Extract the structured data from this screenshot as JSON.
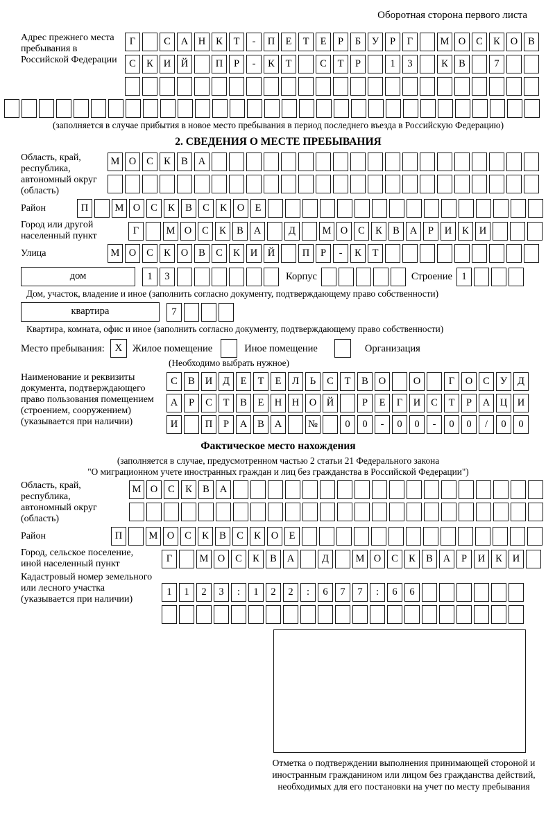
{
  "header": {
    "back_side_note": "Оборотная сторона первого листа"
  },
  "prev_stay": {
    "label": "Адрес прежнего места пребывания в Российской Федерации",
    "rows": [
      {
        "len": 24,
        "text": "Г САНКТ-ПЕТЕРБУРГ МОСКОВ"
      },
      {
        "len": 24,
        "text": "СКИЙ ПР-КТ СТР 13 КВ 7"
      },
      {
        "len": 24,
        "text": ""
      },
      {
        "len": 31,
        "text": ""
      }
    ],
    "note": "(заполняется в случае прибытия в новое место пребывания в период последнего въезда в Российскую Федерацию)"
  },
  "place_of_stay": {
    "title": "2. СВЕДЕНИЯ О МЕСТЕ ПРЕБЫВАНИЯ",
    "region_label": "Область, край, республика, автономный округ (область)",
    "region_rows": [
      {
        "len": 25,
        "text": "МОСКВА"
      },
      {
        "len": 25,
        "text": ""
      }
    ],
    "district_label": "Район",
    "district_row": {
      "len": 27,
      "text": "П МОСКВСКОЕ"
    },
    "city_label": "Город или другой населенный пункт",
    "city_row": {
      "len": 24,
      "text": "Г МОСКВА Д МОСКВАРИКИ"
    },
    "street_label": "Улица",
    "street_row": {
      "len": 25,
      "text": "МОСКОВСКИЙ ПР-КТ"
    },
    "house_box_label": "дом",
    "house_row": {
      "len": 8,
      "text": "13"
    },
    "korpus_label": "Корпус",
    "korpus_row": {
      "len": 5,
      "text": ""
    },
    "stroenie_label": "Строение",
    "stroenie_row": {
      "len": 4,
      "text": "1"
    },
    "house_note": "Дом, участок, владение и иное (заполнить согласно документу, подтверждающему право собственности)",
    "apartment_box_label": "квартира",
    "apartment_row": {
      "len": 4,
      "text": "7"
    },
    "apartment_note": "Квартира, комната, офис и иное (заполнить согласно документу, подтверждающему право собственности)",
    "stay_type": {
      "label": "Место пребывания:",
      "residential_checked": "X",
      "residential_label": "Жилое помещение",
      "other_checked": "",
      "other_label": "Иное помещение",
      "organization_checked": "",
      "organization_label": "Организация",
      "note": "(Необходимо выбрать нужное)"
    },
    "document_label": "Наименование и реквизиты документа, подтверждающего право пользования помещением (строением, сооружением) (указывается при наличии)",
    "document_rows": [
      {
        "len": 21,
        "text": "СВИДЕТЕЛЬСТВО О ГОСУД"
      },
      {
        "len": 21,
        "text": "АРСТВЕННОЙ РЕГИСТРАЦИ"
      },
      {
        "len": 21,
        "text": "И ПРАВА № 00-00-00/000"
      }
    ]
  },
  "actual_location": {
    "title": "Фактическое место нахождения",
    "note_line1": "(заполняется в случае, предусмотренном частью 2 статьи 21 Федерального закона",
    "note_line2": "\"О миграционном учете иностранных граждан и лиц без гражданства в Российской Федерации\")",
    "region_label": "Область, край, республика, автономный округ (область)",
    "region_rows": [
      {
        "len": 24,
        "text": "МОСКВА"
      },
      {
        "len": 24,
        "text": ""
      }
    ],
    "district_label": "Район",
    "district_row": {
      "len": 25,
      "text": "П МОСКВСКОЕ"
    },
    "city_label": "Город, сельское поселение, иной населенный пункт",
    "city_row": {
      "len": 22,
      "text": "Г МОСКВА Д МОСКВАРИКИ"
    },
    "cadastral_label": "Кадастровый номер земельного или лесного участка (указывается при наличии)",
    "cadastral_rows": [
      {
        "len": 21,
        "text": "1123:122:677:66"
      },
      {
        "len": 21,
        "text": ""
      }
    ]
  },
  "confirmation_note": "Отметка о подтверждении выполнения принимающей стороной и иностранным гражданином или лицом без гражданства действий, необходимых для его постановки на учет по месту пребывания"
}
